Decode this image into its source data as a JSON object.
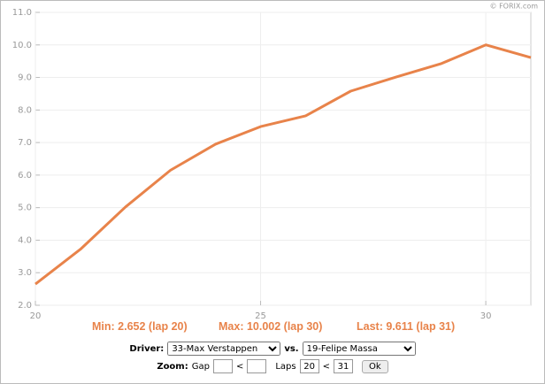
{
  "chart_data": {
    "type": "line",
    "credit": "© FORIX.com",
    "x": [
      20,
      21,
      22,
      23,
      24,
      25,
      26,
      27,
      28,
      29,
      30,
      31
    ],
    "series": [
      {
        "name": "33-Max Verstappen",
        "color": "#e8834a",
        "values": [
          2.652,
          3.72,
          5.02,
          6.15,
          6.95,
          7.49,
          7.82,
          8.58,
          9.01,
          9.42,
          10.002,
          9.611
        ]
      }
    ],
    "xlim": [
      20,
      31
    ],
    "xticks": [
      20,
      25,
      30
    ],
    "ylim": [
      2,
      11
    ],
    "yticks": [
      {
        "value": 2,
        "label": "2.0"
      },
      {
        "value": 3,
        "label": "3.0"
      },
      {
        "value": 4,
        "label": "4.0"
      },
      {
        "value": 5,
        "label": "5.0"
      },
      {
        "value": 6,
        "label": "6.0"
      },
      {
        "value": 7,
        "label": "7.0"
      },
      {
        "value": 8,
        "label": "8.0"
      },
      {
        "value": 9,
        "label": "9.0"
      },
      {
        "value": 10,
        "label": "10.0"
      },
      {
        "value": 11,
        "label": "11.0"
      }
    ],
    "grid": true,
    "annotations": [
      "Min: 2.652 (lap 20)",
      "Max: 10.002 (lap 30)",
      "Last: 9.611 (lap 31)"
    ]
  },
  "controls": {
    "driver_label": "Driver:",
    "driver": "33-Max Verstappen",
    "vs_label": "vs.",
    "opponent": "19-Felipe Massa",
    "zoom_label": "Zoom:",
    "gap_label": "Gap",
    "lt1": "<",
    "laps_label": "Laps",
    "laps_from": "20",
    "lt2": "<",
    "laps_to": "31",
    "ok": "Ok"
  }
}
